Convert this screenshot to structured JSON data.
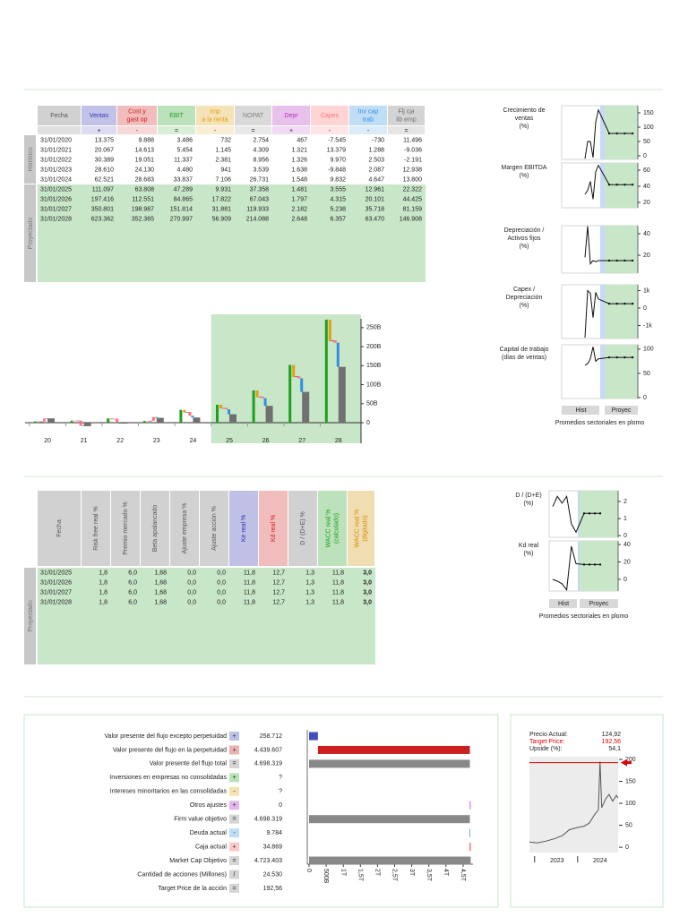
{
  "income_table": {
    "columns": [
      {
        "label": [
          "Fecha"
        ]
      },
      {
        "label": [
          "Ventas"
        ],
        "sign": "+",
        "color": "#3535b5"
      },
      {
        "label": [
          "Cost y",
          "gast op"
        ],
        "sign": "-",
        "color": "#d02020"
      },
      {
        "label": [
          "EBIT"
        ],
        "sign": "=",
        "color": "#1f9e1f"
      },
      {
        "label": [
          "Imp",
          "a la renta"
        ],
        "sign": "-",
        "color": "#e0a010"
      },
      {
        "label": [
          "NOPAT"
        ],
        "sign": "=",
        "color": "#808080"
      },
      {
        "label": [
          "Depr"
        ],
        "sign": "+",
        "color": "#b030c0"
      },
      {
        "label": [
          "Capex"
        ],
        "sign": "-",
        "color": "#ff7070"
      },
      {
        "label": [
          "Inv cap",
          "trab"
        ],
        "sign": "-",
        "color": "#3090e0"
      },
      {
        "label": [
          "Flj cja",
          "lib emp"
        ],
        "sign": "=",
        "color": "#707070"
      }
    ],
    "groups": [
      {
        "label": "Histórico",
        "rows": [
          {
            "date": "31/01/2020",
            "values": [
              13375,
              9888,
              3486,
              732,
              2754,
              467,
              -7545,
              -730,
              11496
            ],
            "value_labels": [
              "13.375",
              "9.888",
              "3.486",
              "732",
              "2.754",
              "467",
              "-7.545",
              "-730",
              "11.496"
            ]
          },
          {
            "date": "31/01/2021",
            "values": [
              20067,
              14613,
              5454,
              1145,
              4309,
              1321,
              13379,
              1288,
              -9036
            ],
            "value_labels": [
              "20.067",
              "14.613",
              "5.454",
              "1.145",
              "4.309",
              "1.321",
              "13.379",
              "1.288",
              "-9.036"
            ]
          },
          {
            "date": "31/01/2022",
            "values": [
              30389,
              19051,
              11337,
              2381,
              8956,
              1326,
              9970,
              2503,
              -2191
            ],
            "value_labels": [
              "30.389",
              "19.051",
              "11.337",
              "2.381",
              "8.956",
              "1.326",
              "9.970",
              "2.503",
              "-2.191"
            ]
          },
          {
            "date": "31/01/2023",
            "values": [
              28610,
              24130,
              4480,
              941,
              3539,
              1638,
              -9848,
              2087,
              12938
            ],
            "value_labels": [
              "28.610",
              "24.130",
              "4.480",
              "941",
              "3.539",
              "1.638",
              "-9.848",
              "2.087",
              "12.938"
            ]
          },
          {
            "date": "31/01/2024",
            "values": [
              62521,
              28683,
              33837,
              7106,
              26731,
              1548,
              9832,
              4647,
              13800
            ],
            "value_labels": [
              "62.521",
              "28.683",
              "33.837",
              "7.106",
              "26.731",
              "1.548",
              "9.832",
              "4.647",
              "13.800"
            ]
          }
        ]
      },
      {
        "label": "Proyectado",
        "rows": [
          {
            "date": "31/01/2025",
            "values": [
              111097,
              63808,
              47289,
              9931,
              37358,
              1481,
              3555,
              12961,
              22322
            ],
            "value_labels": [
              "111.097",
              "63.808",
              "47.289",
              "9.931",
              "37.358",
              "1.481",
              "3.555",
              "12.961",
              "22.322"
            ]
          },
          {
            "date": "31/01/2026",
            "values": [
              197416,
              112551,
              84865,
              17822,
              67043,
              1797,
              4315,
              20101,
              44425
            ],
            "value_labels": [
              "197.416",
              "112.551",
              "84.865",
              "17.822",
              "67.043",
              "1.797",
              "4.315",
              "20.101",
              "44.425"
            ]
          },
          {
            "date": "31/01/2027",
            "values": [
              350801,
              198987,
              151814,
              31881,
              119933,
              2182,
              5238,
              35718,
              81159
            ],
            "value_labels": [
              "350.801",
              "198.987",
              "151.814",
              "31.881",
              "119.933",
              "2.182",
              "5.238",
              "35.718",
              "81.159"
            ]
          },
          {
            "date": "31/01/2028",
            "values": [
              623362,
              352365,
              270997,
              56909,
              214088,
              2648,
              6357,
              63470,
              146908
            ],
            "value_labels": [
              "623.362",
              "352.365",
              "270.997",
              "56.909",
              "214.088",
              "2.648",
              "6.357",
              "63.470",
              "146.908"
            ]
          }
        ]
      }
    ]
  },
  "cashflow_chart": {
    "type": "waterfall",
    "categories": [
      "20",
      "21",
      "22",
      "23",
      "24",
      "25",
      "26",
      "27",
      "28"
    ],
    "ylim": [
      -54000,
      285000
    ],
    "yticks": [
      0,
      {
        "value": 50000,
        "label": "50B"
      },
      {
        "value": 100000,
        "label": "100B"
      },
      {
        "value": 150000,
        "label": "150B"
      },
      {
        "value": 200000,
        "label": "200B"
      },
      {
        "value": 250000,
        "label": "250B"
      }
    ]
  },
  "ratio_charts": {
    "hist_label": "Hist",
    "proj_label": "Proyec",
    "note": "Promedios sectoriales en plomo",
    "charts": [
      {
        "type": "line",
        "title": [
          "Crecimiento de",
          "ventas",
          "(%)"
        ],
        "values": [
          -10,
          50,
          50,
          -6,
          118,
          160,
          78,
          78,
          78,
          78
        ],
        "ylim": [
          -12.5,
          175
        ],
        "yticks": [
          0,
          50,
          100,
          150
        ]
      },
      {
        "type": "line",
        "title": [
          "Margen EBITDA",
          "(%)"
        ],
        "values": [
          30,
          35,
          46,
          24,
          58,
          66,
          42,
          42,
          42,
          42
        ],
        "ylim": [
          13.3,
          68.9
        ],
        "yticks": [
          20,
          40,
          60
        ]
      },
      {
        "type": "line",
        "title": [
          "Depreciación /",
          "Activos fijos",
          "(%)"
        ],
        "values": [
          18,
          47,
          12,
          15,
          14,
          15,
          15,
          15,
          15,
          15
        ],
        "ylim": [
          3.3,
          47.5
        ],
        "yticks": [
          20,
          40
        ]
      },
      {
        "type": "line",
        "title": [
          "Capex /",
          "Depreciación",
          "(%)"
        ],
        "values": [
          -1700,
          1000,
          850,
          -550,
          900,
          520,
          250,
          250,
          250,
          250
        ],
        "ylim": [
          -1744,
          1333
        ],
        "yticks": [
          {
            "value": -1000,
            "label": "-1k"
          },
          0,
          {
            "value": 1000,
            "label": "1k"
          }
        ]
      },
      {
        "type": "line",
        "title": [
          "Capital de trabajo",
          "(días de ventas)"
        ],
        "values": [
          67,
          70,
          80,
          105,
          75,
          80,
          83,
          83,
          83,
          83
        ],
        "ylim": [
          -1.9,
          109
        ],
        "yticks": [
          0,
          50,
          100
        ]
      }
    ]
  },
  "wacc_table": {
    "columns": [
      {
        "label": [
          "Fecha"
        ]
      },
      {
        "label": [
          "Risk free real %"
        ]
      },
      {
        "label": [
          "Premio mercado %"
        ]
      },
      {
        "label": [
          "Beta apalancado"
        ]
      },
      {
        "label": [
          "Ajuste empresa %"
        ]
      },
      {
        "label": [
          "Ajuste acción %"
        ]
      },
      {
        "label": [
          "Ke real %"
        ],
        "color": "#3030b0"
      },
      {
        "label": [
          "Kd real %"
        ],
        "color": "#d02020"
      },
      {
        "label": [
          "D / (D+E) %"
        ]
      },
      {
        "label": [
          "WACC real %",
          "(calculado)"
        ],
        "color": "#1f9e1f"
      },
      {
        "label": [
          "WACC real %",
          "(digitado)"
        ],
        "color": "#d09000"
      }
    ],
    "groups": [
      {
        "label": "Proyectado",
        "rows": [
          {
            "date": "31/01/2025",
            "values": [
              "1,8",
              "6,0",
              "1,68",
              "0,0",
              "0,0",
              "11,8",
              "12,7",
              "1,3",
              "11,8",
              "3,0"
            ]
          },
          {
            "date": "31/01/2026",
            "values": [
              "1,8",
              "6,0",
              "1,68",
              "0,0",
              "0,0",
              "11,8",
              "12,7",
              "1,3",
              "11,8",
              "3,0"
            ]
          },
          {
            "date": "31/01/2027",
            "values": [
              "1,8",
              "6,0",
              "1,68",
              "0,0",
              "0,0",
              "11,8",
              "12,7",
              "1,3",
              "11,8",
              "3,0"
            ]
          },
          {
            "date": "31/01/2028",
            "values": [
              "1,8",
              "6,0",
              "1,68",
              "0,0",
              "0,0",
              "11,8",
              "12,7",
              "1,3",
              "11,8",
              "3,0"
            ]
          }
        ]
      }
    ]
  },
  "wacc_charts": {
    "hist_label": "Hist",
    "proj_label": "Proyec",
    "note": "Promedios sectoriales en plomo",
    "charts": [
      {
        "type": "line",
        "title": [
          "D / (D+E)",
          "(%)"
        ],
        "values": [
          1.7,
          2.3,
          1.9,
          2.3,
          0.7,
          0.2,
          1.3,
          1.3,
          1.3,
          1.3
        ],
        "ylim": [
          -0.1,
          2.63
        ],
        "yticks": [
          0,
          1,
          2
        ]
      },
      {
        "type": "line",
        "title": [
          "Kd real",
          "(%)"
        ],
        "values": [
          0,
          -2,
          -5,
          -12,
          38,
          18,
          17,
          17,
          17,
          17
        ],
        "ylim": [
          -13.3,
          44.1
        ],
        "yticks": [
          0,
          20,
          40
        ]
      }
    ]
  },
  "valuation": {
    "rows": [
      {
        "label": "Valor presente del flujo excepto perpetuidad",
        "sign": "+",
        "value": 258712,
        "value_label": "258.712",
        "color": "#4050b8"
      },
      {
        "label": "Valor presente del flujo en la perpetuidad",
        "sign": "+",
        "value": 4439607,
        "value_label": "4.439.607",
        "color": "#cc2020"
      },
      {
        "label": "Valor presente del flujo total",
        "sign": "=",
        "value": 4698319,
        "value_label": "4.698.319",
        "color": "#888888"
      },
      {
        "label": "Inversiones en empresas no consolidadas",
        "sign": "+",
        "value": null,
        "value_label": "?",
        "color": "#30b030"
      },
      {
        "label": "Intereses minoritarios en las consolidadas",
        "sign": "-",
        "value": null,
        "value_label": "?",
        "color": "#e0b020"
      },
      {
        "label": "Otros ajustes",
        "sign": "+",
        "value": 0,
        "color": "#b030c0"
      },
      {
        "label": "Firm value objetivo",
        "sign": "=",
        "value": 4698319,
        "value_label": "4.698.319",
        "color": "#888888"
      },
      {
        "label": "Deuda actual",
        "sign": "-",
        "value": 9784,
        "value_label": "9.784",
        "color": "#40a0e0"
      },
      {
        "label": "Caja actual",
        "sign": "+",
        "value": 34869,
        "value_label": "34.869",
        "color": "#ff6060"
      },
      {
        "label": "Market Cap Objetivo",
        "sign": "=",
        "value": 4723403,
        "value_label": "4.723.403",
        "color": "#888888"
      },
      {
        "label": "Cantidad de acciones (Millones)",
        "sign": "/",
        "value": 24530,
        "value_label": "24.530",
        "color": "#888888"
      },
      {
        "label": "Target Price de la acción",
        "sign": "=",
        "value": 192.56,
        "value_label": "192,56",
        "color": "#888888"
      }
    ],
    "chart": {
      "type": "waterfall",
      "xlim": [
        -52000,
        4790000
      ],
      "xticks": [
        0,
        {
          "value": 500000,
          "label": "500B"
        },
        {
          "value": 1000000,
          "label": "1T"
        },
        {
          "value": 1500000,
          "label": "1,5T"
        },
        {
          "value": 2000000,
          "label": "2T"
        },
        {
          "value": 2500000,
          "label": "2,5T"
        },
        {
          "value": 3000000,
          "label": "3T"
        },
        {
          "value": 3500000,
          "label": "3,5T"
        },
        {
          "value": 4000000,
          "label": "4T"
        },
        {
          "value": 4500000,
          "label": "4,5T"
        }
      ]
    }
  },
  "stock": {
    "rows": [
      {
        "label": "Precio Actual:",
        "value": 124.92,
        "value_label": "124,92"
      },
      {
        "label": "Target Price:",
        "value": 192.56,
        "value_label": "192,56",
        "color": "#e00000"
      },
      {
        "label": "Upside (%):",
        "value": 54.1,
        "value_label": "54,1"
      }
    ],
    "chart": {
      "type": "line",
      "x": [
        2022.88,
        2023.06,
        2023.27,
        2023.48,
        2023.65,
        2023.81,
        2024.0,
        2024.15,
        2024.27,
        2024.4,
        2024.48,
        2024.52,
        2024.56,
        2024.65,
        2024.73,
        2024.81,
        2024.9,
        2024.94
      ],
      "values": [
        12,
        10,
        14,
        20,
        27,
        40,
        45,
        48,
        55,
        75,
        85,
        195,
        90,
        110,
        120,
        105,
        118,
        112
      ],
      "xlim": [
        2022.88,
        2024.94
      ],
      "xticks": [
        2023,
        2024
      ],
      "ylim": [
        -12,
        206
      ],
      "yticks": [
        0,
        50,
        100,
        150,
        200
      ],
      "color": "#555555",
      "target_color": "#dd0000"
    }
  }
}
